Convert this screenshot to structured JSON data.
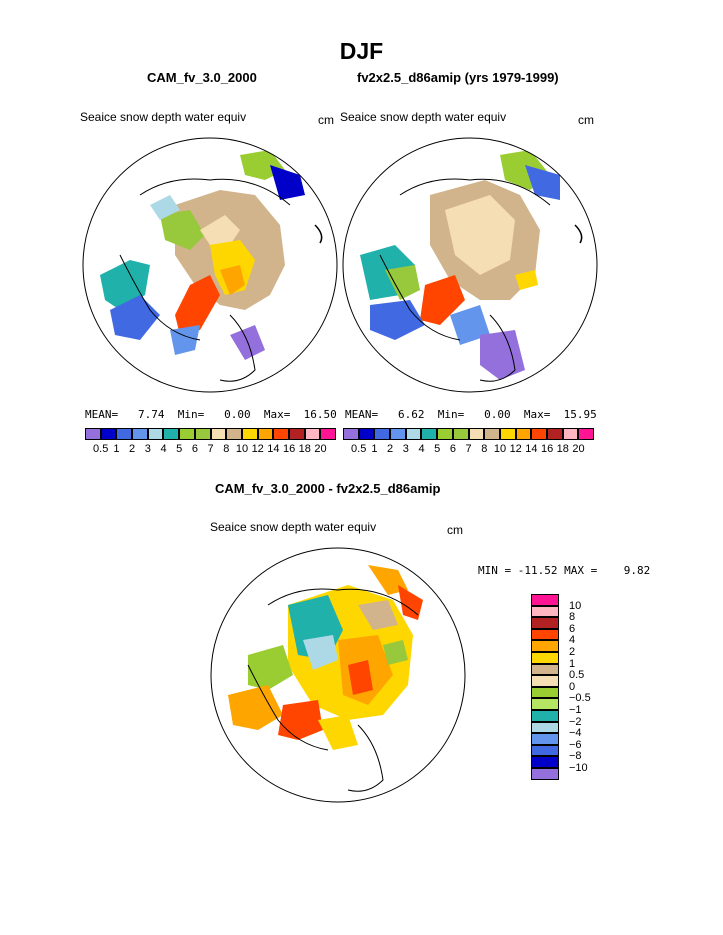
{
  "page": {
    "title": "DJF",
    "panel_left_title": "CAM_fv_3.0_2000",
    "panel_right_title": "fv2x2.5_d86amip (yrs 1979-1999)",
    "panel_bottom_title": "CAM_fv_3.0_2000 - fv2x2.5_d86amip"
  },
  "chart_data": [
    {
      "type": "heatmap",
      "title": "CAM_fv_3.0_2000",
      "variable": "Seaice snow depth water equiv",
      "units": "cm",
      "projection": "north polar stereographic",
      "stats": {
        "mean_label": "MEAN=",
        "mean": "7.74",
        "min_label": "Min=",
        "min": "0.00",
        "max_label": "Max=",
        "max": "16.50"
      },
      "colorbar_labels": [
        "0.5",
        "1",
        "2",
        "3",
        "4",
        "5",
        "6",
        "7",
        "8",
        "10",
        "12",
        "14",
        "16",
        "18",
        "20"
      ]
    },
    {
      "type": "heatmap",
      "title": "fv2x2.5_d86amip (yrs 1979-1999)",
      "variable": "Seaice snow depth water equiv",
      "units": "cm",
      "projection": "north polar stereographic",
      "stats": {
        "mean_label": "MEAN=",
        "mean": "6.62",
        "min_label": "Min=",
        "min": "0.00",
        "max_label": "Max=",
        "max": "15.95"
      },
      "colorbar_labels": [
        "0.5",
        "1",
        "2",
        "3",
        "4",
        "5",
        "6",
        "7",
        "8",
        "10",
        "12",
        "14",
        "16",
        "18",
        "20"
      ]
    },
    {
      "type": "heatmap",
      "title": "CAM_fv_3.0_2000 - fv2x2.5_d86amip",
      "variable": "Seaice snow depth water equiv",
      "units": "cm",
      "projection": "north polar stereographic",
      "stats_text": "MIN = -11.52 MAX =    9.82",
      "colorbar_labels": [
        "10",
        "8",
        "6",
        "4",
        "2",
        "1",
        "0.5",
        "0",
        "−0.5",
        "−1",
        "−2",
        "−4",
        "−6",
        "−8",
        "−10"
      ]
    }
  ],
  "colors": {
    "abs_scale": [
      "#9370db",
      "#0000c8",
      "#4169e1",
      "#6495ed",
      "#add8e6",
      "#20b2aa",
      "#9acd32",
      "#98c83c",
      "#f5deb3",
      "#d2b48c",
      "#ffd700",
      "#ffa500",
      "#ff4500",
      "#b22222",
      "#ffb6c1",
      "#ff1493"
    ],
    "diff_scale": [
      "#ff1493",
      "#ffb6c1",
      "#b22222",
      "#ff4500",
      "#ffa500",
      "#ffd700",
      "#d2b48c",
      "#f5deb3",
      "#9acd32",
      "#b4e664",
      "#20b2aa",
      "#add8e6",
      "#6495ed",
      "#4169e1",
      "#0000c8",
      "#9370db"
    ]
  }
}
